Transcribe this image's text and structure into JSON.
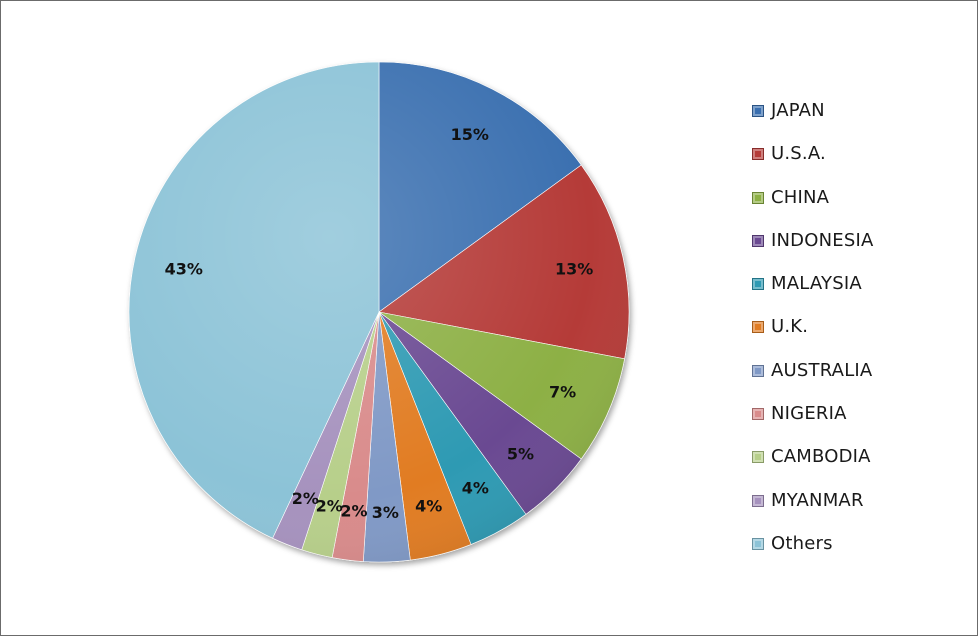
{
  "chart_data": {
    "type": "pie",
    "title": "",
    "legend_position": "right",
    "slices": [
      {
        "label": "JAPAN",
        "value": 15,
        "value_label": "15%",
        "color": "#3a6fb0"
      },
      {
        "label": "U.S.A.",
        "value": 13,
        "value_label": "13%",
        "color": "#b53b38"
      },
      {
        "label": "CHINA",
        "value": 7,
        "value_label": "7%",
        "color": "#8db044"
      },
      {
        "label": "INDONESIA",
        "value": 5,
        "value_label": "5%",
        "color": "#6b4a92"
      },
      {
        "label": "MALAYSIA",
        "value": 4,
        "value_label": "4%",
        "color": "#2f9ab3"
      },
      {
        "label": "U.K.",
        "value": 4,
        "value_label": "4%",
        "color": "#e17c22"
      },
      {
        "label": "AUSTRALIA",
        "value": 3,
        "value_label": "3%",
        "color": "#8099c6"
      },
      {
        "label": "NIGERIA",
        "value": 2,
        "value_label": "2%",
        "color": "#d98b8b"
      },
      {
        "label": "CAMBODIA",
        "value": 2,
        "value_label": "2%",
        "color": "#b7cf8a"
      },
      {
        "label": "MYANMAR",
        "value": 2,
        "value_label": "2%",
        "color": "#a692be"
      },
      {
        "label": "Others",
        "value": 43,
        "value_label": "43%",
        "color": "#8cc3d7"
      }
    ]
  }
}
